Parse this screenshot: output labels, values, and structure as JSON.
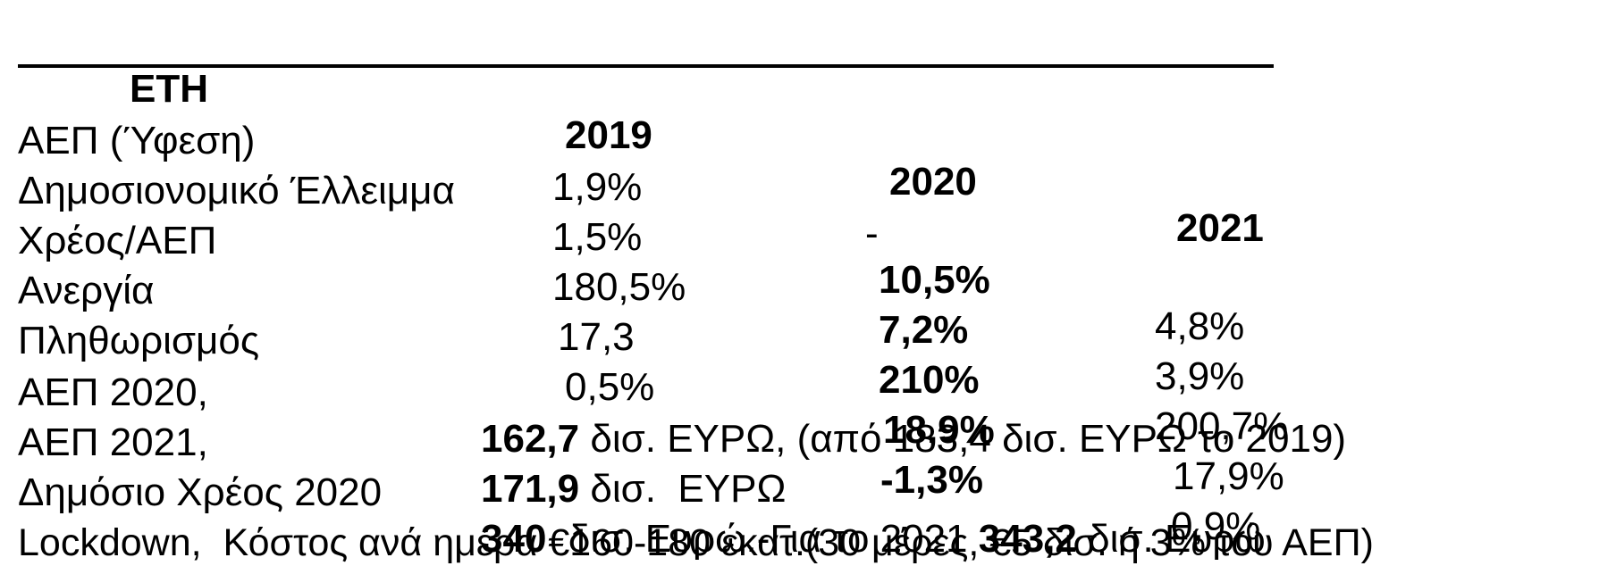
{
  "header": {
    "label": "ΕΤΗ",
    "years": [
      "2019",
      "2020",
      "2021"
    ]
  },
  "rows": [
    {
      "label": "ΑΕΠ (Ύφεση)",
      "y2019": "1,9%",
      "y2020_sign": "-",
      "y2020": "10,5%",
      "y2021": "4,8%"
    },
    {
      "label": "Δημοσιονομικό Έλλειμμα",
      "y2019": "1,5%",
      "y2020_sign": "",
      "y2020": "7,2%",
      "y2021": "3,9%"
    },
    {
      "label": "Χρέος/ΑΕΠ",
      "y2019": "180,5%",
      "y2020_sign": "",
      "y2020": "210%",
      "y2021": "200,7%"
    },
    {
      "label": "Ανεργία",
      "y2019": "17,3",
      "y2020_sign": "",
      "y2020": "18,9%",
      "y2021": "17,9%"
    },
    {
      "label": "Πληθωρισμός",
      "y2019": "0,5%",
      "y2020_sign": "",
      "y2020": "-1,3%",
      "y2021": "0,9%"
    }
  ],
  "notes": {
    "gdp2020": {
      "label": "ΑΕΠ 2020,",
      "value": "162,7",
      "rest": " δισ. ΕΥΡΩ, (από 183,4 δισ. ΕΥΡΩ το 2019)"
    },
    "gdp2021": {
      "label": "ΑΕΠ 2021,",
      "value": "171,9",
      "rest": " δισ.  ΕΥΡΩ"
    },
    "debt2020": {
      "label": "Δημόσιο Χρέος 2020",
      "value": "340",
      "mid": "  δισ. Ευρώ.-Για το 2021 ",
      "value2": "343,2",
      "rest": " δισ. Ευρώ"
    },
    "lockdown": {
      "text": "Lockdown,  Κόστος ανά ημέρα €160-180 εκατ.(30 μέρες, €5 δισ. ή 3% του ΑΕΠ)"
    }
  }
}
